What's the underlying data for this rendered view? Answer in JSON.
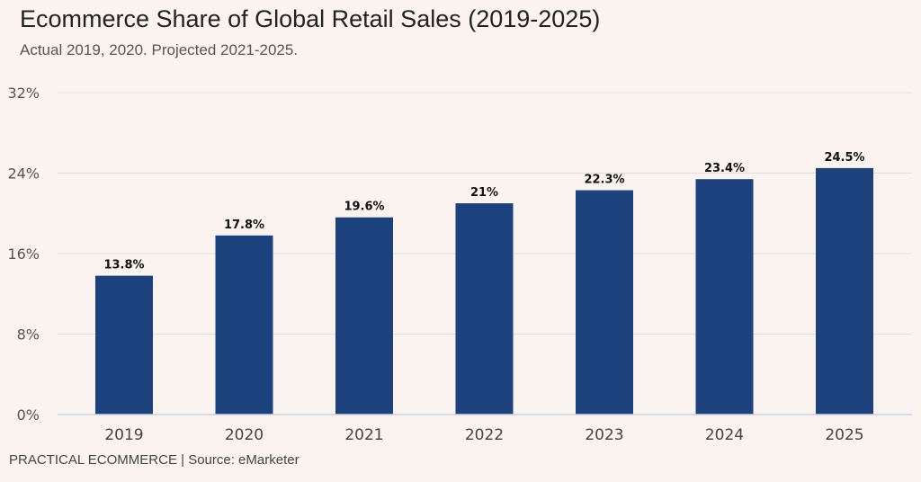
{
  "header": {
    "title": "Ecommerce Share of Global Retail Sales (2019-2025)",
    "subtitle": "Actual 2019, 2020. Projected 2021-2025."
  },
  "footer": {
    "text": "PRACTICAL ECOMMERCE | Source: eMarketer"
  },
  "colors": {
    "bar": "#1b427d",
    "gridline": "#e0dcdc",
    "axis": "#c9d3e6",
    "background": "#fbf3ef"
  },
  "chart_data": {
    "type": "bar",
    "title": "Ecommerce Share of Global Retail Sales (2019-2025)",
    "subtitle": "Actual 2019, 2020. Projected 2021-2025.",
    "categories": [
      "2019",
      "2020",
      "2021",
      "2022",
      "2023",
      "2024",
      "2025"
    ],
    "values": [
      13.8,
      17.8,
      19.6,
      21,
      22.3,
      23.4,
      24.5
    ],
    "data_labels": [
      "13.8%",
      "17.8%",
      "19.6%",
      "21%",
      "22.3%",
      "23.4%",
      "24.5%"
    ],
    "ylim": [
      0,
      32
    ],
    "yticks": [
      0,
      8,
      16,
      24,
      32
    ],
    "ytick_labels": [
      "0%",
      "8%",
      "16%",
      "24%",
      "32%"
    ],
    "xlabel": "",
    "ylabel": "",
    "grid": true,
    "legend": "none"
  }
}
